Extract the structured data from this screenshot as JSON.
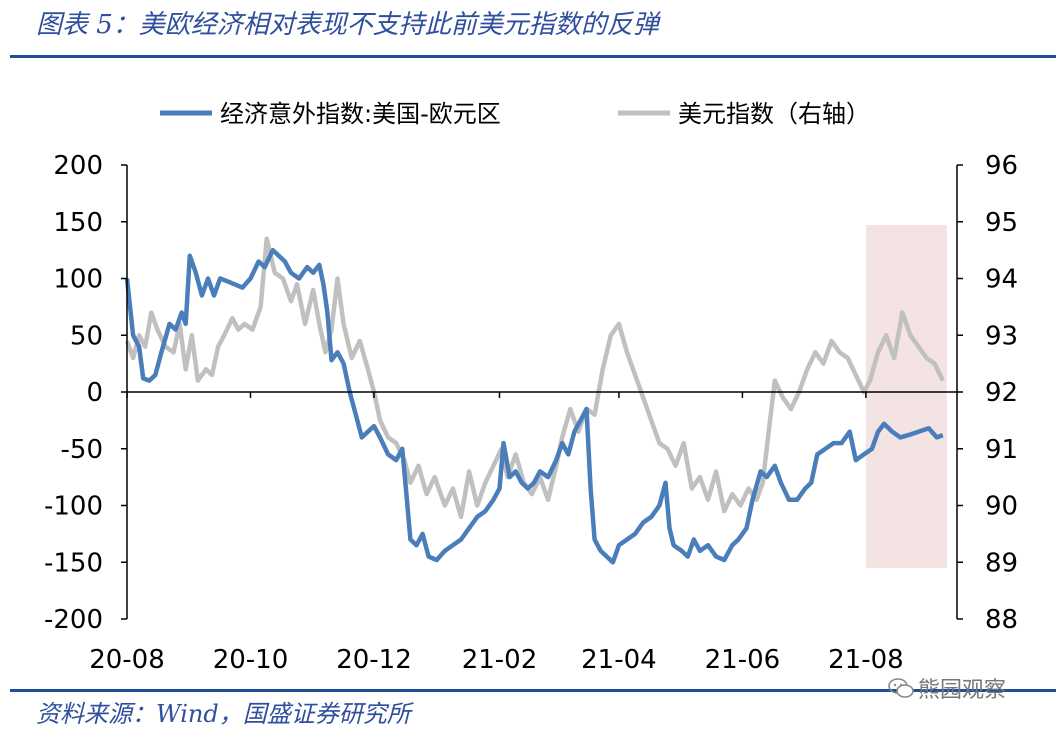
{
  "header": {
    "title": "图表 5：美欧经济相对表现不支持此前美元指数的反弹"
  },
  "footer": {
    "source": "资料来源：Wind，国盛证券研究所",
    "watermark": "熊园观察"
  },
  "colors": {
    "series_primary": "#4a7ebb",
    "series_secondary": "#c0c0c0",
    "highlight": "#f3e3e3",
    "rule": "#1f4f99"
  },
  "chart_data": {
    "type": "line",
    "title": "",
    "xlabel": "",
    "ylabel": "",
    "x_ticks": [
      "20-08",
      "20-10",
      "20-12",
      "21-02",
      "21-04",
      "21-06",
      "21-08"
    ],
    "x_range": [
      "2020-08-01",
      "2021-09-15"
    ],
    "left_axis": {
      "range": [
        -200,
        200
      ],
      "ticks": [
        "200",
        "150",
        "100",
        "50",
        "0",
        "-50",
        "-100",
        "-150",
        "-200"
      ]
    },
    "right_axis": {
      "range": [
        88,
        96
      ],
      "ticks": [
        "96",
        "95",
        "94",
        "93",
        "92",
        "91",
        "90",
        "89",
        "88"
      ]
    },
    "legend_position": "top",
    "highlight_region": {
      "x": [
        "2021-08-01",
        "2021-09-10"
      ]
    },
    "series": [
      {
        "name": "经济意外指数:美国-欧元区",
        "axis": "left",
        "color": "#4a7ebb",
        "points": [
          [
            "2020-08-01",
            100
          ],
          [
            "2020-08-04",
            50
          ],
          [
            "2020-08-07",
            40
          ],
          [
            "2020-08-09",
            12
          ],
          [
            "2020-08-12",
            10
          ],
          [
            "2020-08-15",
            15
          ],
          [
            "2020-08-18",
            35
          ],
          [
            "2020-08-22",
            60
          ],
          [
            "2020-08-25",
            55
          ],
          [
            "2020-08-28",
            70
          ],
          [
            "2020-08-30",
            60
          ],
          [
            "2020-09-01",
            120
          ],
          [
            "2020-09-04",
            105
          ],
          [
            "2020-09-07",
            85
          ],
          [
            "2020-09-10",
            100
          ],
          [
            "2020-09-13",
            85
          ],
          [
            "2020-09-16",
            100
          ],
          [
            "2020-09-19",
            98
          ],
          [
            "2020-09-23",
            95
          ],
          [
            "2020-09-27",
            92
          ],
          [
            "2020-10-01",
            100
          ],
          [
            "2020-10-05",
            115
          ],
          [
            "2020-10-08",
            110
          ],
          [
            "2020-10-12",
            125
          ],
          [
            "2020-10-15",
            120
          ],
          [
            "2020-10-18",
            115
          ],
          [
            "2020-10-21",
            105
          ],
          [
            "2020-10-25",
            100
          ],
          [
            "2020-10-29",
            110
          ],
          [
            "2020-11-01",
            105
          ],
          [
            "2020-11-04",
            112
          ],
          [
            "2020-11-06",
            95
          ],
          [
            "2020-11-08",
            70
          ],
          [
            "2020-11-10",
            28
          ],
          [
            "2020-11-13",
            35
          ],
          [
            "2020-11-16",
            25
          ],
          [
            "2020-11-19",
            0
          ],
          [
            "2020-11-22",
            -20
          ],
          [
            "2020-11-25",
            -40
          ],
          [
            "2020-11-28",
            -35
          ],
          [
            "2020-12-01",
            -30
          ],
          [
            "2020-12-04",
            -40
          ],
          [
            "2020-12-08",
            -55
          ],
          [
            "2020-12-12",
            -60
          ],
          [
            "2020-12-15",
            -50
          ],
          [
            "2020-12-17",
            -90
          ],
          [
            "2020-12-19",
            -130
          ],
          [
            "2020-12-22",
            -135
          ],
          [
            "2020-12-25",
            -125
          ],
          [
            "2020-12-28",
            -145
          ],
          [
            "2021-01-01",
            -148
          ],
          [
            "2021-01-05",
            -140
          ],
          [
            "2021-01-09",
            -135
          ],
          [
            "2021-01-13",
            -130
          ],
          [
            "2021-01-17",
            -120
          ],
          [
            "2021-01-21",
            -110
          ],
          [
            "2021-01-25",
            -105
          ],
          [
            "2021-01-29",
            -95
          ],
          [
            "2021-02-01",
            -85
          ],
          [
            "2021-02-03",
            -45
          ],
          [
            "2021-02-06",
            -75
          ],
          [
            "2021-02-09",
            -70
          ],
          [
            "2021-02-12",
            -80
          ],
          [
            "2021-02-15",
            -85
          ],
          [
            "2021-02-18",
            -80
          ],
          [
            "2021-02-21",
            -70
          ],
          [
            "2021-02-25",
            -75
          ],
          [
            "2021-03-01",
            -60
          ],
          [
            "2021-03-04",
            -45
          ],
          [
            "2021-03-07",
            -55
          ],
          [
            "2021-03-10",
            -35
          ],
          [
            "2021-03-13",
            -25
          ],
          [
            "2021-03-16",
            -15
          ],
          [
            "2021-03-18",
            -85
          ],
          [
            "2021-03-20",
            -130
          ],
          [
            "2021-03-23",
            -140
          ],
          [
            "2021-03-26",
            -145
          ],
          [
            "2021-03-29",
            -150
          ],
          [
            "2021-04-01",
            -135
          ],
          [
            "2021-04-05",
            -130
          ],
          [
            "2021-04-09",
            -125
          ],
          [
            "2021-04-13",
            -115
          ],
          [
            "2021-04-17",
            -110
          ],
          [
            "2021-04-21",
            -100
          ],
          [
            "2021-04-24",
            -80
          ],
          [
            "2021-04-26",
            -120
          ],
          [
            "2021-04-28",
            -135
          ],
          [
            "2021-05-02",
            -140
          ],
          [
            "2021-05-05",
            -145
          ],
          [
            "2021-05-08",
            -130
          ],
          [
            "2021-05-11",
            -140
          ],
          [
            "2021-05-15",
            -135
          ],
          [
            "2021-05-19",
            -145
          ],
          [
            "2021-05-23",
            -148
          ],
          [
            "2021-05-27",
            -135
          ],
          [
            "2021-05-30",
            -130
          ],
          [
            "2021-06-03",
            -120
          ],
          [
            "2021-06-06",
            -95
          ],
          [
            "2021-06-10",
            -70
          ],
          [
            "2021-06-13",
            -75
          ],
          [
            "2021-06-17",
            -65
          ],
          [
            "2021-06-20",
            -80
          ],
          [
            "2021-06-24",
            -95
          ],
          [
            "2021-06-28",
            -95
          ],
          [
            "2021-07-02",
            -85
          ],
          [
            "2021-07-05",
            -80
          ],
          [
            "2021-07-08",
            -55
          ],
          [
            "2021-07-12",
            -50
          ],
          [
            "2021-07-16",
            -45
          ],
          [
            "2021-07-20",
            -45
          ],
          [
            "2021-07-24",
            -35
          ],
          [
            "2021-07-27",
            -60
          ],
          [
            "2021-07-31",
            -55
          ],
          [
            "2021-08-04",
            -50
          ],
          [
            "2021-08-07",
            -35
          ],
          [
            "2021-08-10",
            -28
          ],
          [
            "2021-08-14",
            -35
          ],
          [
            "2021-08-18",
            -40
          ],
          [
            "2021-08-22",
            -38
          ],
          [
            "2021-08-27",
            -35
          ],
          [
            "2021-09-01",
            -32
          ],
          [
            "2021-09-05",
            -40
          ],
          [
            "2021-09-08",
            -38
          ]
        ]
      },
      {
        "name": "美元指数（右轴）",
        "axis": "right",
        "color": "#c0c0c0",
        "points": [
          [
            "2020-08-01",
            92.9
          ],
          [
            "2020-08-04",
            92.6
          ],
          [
            "2020-08-07",
            93.0
          ],
          [
            "2020-08-10",
            92.8
          ],
          [
            "2020-08-13",
            93.4
          ],
          [
            "2020-08-16",
            93.1
          ],
          [
            "2020-08-20",
            92.8
          ],
          [
            "2020-08-24",
            92.7
          ],
          [
            "2020-08-27",
            93.2
          ],
          [
            "2020-08-30",
            92.4
          ],
          [
            "2020-09-02",
            93.0
          ],
          [
            "2020-09-05",
            92.2
          ],
          [
            "2020-09-09",
            92.4
          ],
          [
            "2020-09-12",
            92.3
          ],
          [
            "2020-09-15",
            92.8
          ],
          [
            "2020-09-18",
            93.0
          ],
          [
            "2020-09-22",
            93.3
          ],
          [
            "2020-09-25",
            93.1
          ],
          [
            "2020-09-28",
            93.2
          ],
          [
            "2020-10-02",
            93.1
          ],
          [
            "2020-10-06",
            93.5
          ],
          [
            "2020-10-09",
            94.7
          ],
          [
            "2020-10-13",
            94.1
          ],
          [
            "2020-10-17",
            94.0
          ],
          [
            "2020-10-21",
            93.6
          ],
          [
            "2020-10-24",
            93.9
          ],
          [
            "2020-10-28",
            93.2
          ],
          [
            "2020-11-01",
            93.8
          ],
          [
            "2020-11-04",
            93.2
          ],
          [
            "2020-11-07",
            92.7
          ],
          [
            "2020-11-10",
            93.1
          ],
          [
            "2020-11-13",
            94.0
          ],
          [
            "2020-11-16",
            93.2
          ],
          [
            "2020-11-20",
            92.6
          ],
          [
            "2020-11-24",
            92.9
          ],
          [
            "2020-11-28",
            92.4
          ],
          [
            "2020-12-01",
            92.0
          ],
          [
            "2020-12-04",
            91.5
          ],
          [
            "2020-12-08",
            91.2
          ],
          [
            "2020-12-12",
            91.1
          ],
          [
            "2020-12-16",
            90.8
          ],
          [
            "2020-12-19",
            90.4
          ],
          [
            "2020-12-23",
            90.7
          ],
          [
            "2020-12-27",
            90.2
          ],
          [
            "2020-12-31",
            90.5
          ],
          [
            "2021-01-05",
            90.0
          ],
          [
            "2021-01-09",
            90.3
          ],
          [
            "2021-01-13",
            89.8
          ],
          [
            "2021-01-17",
            90.6
          ],
          [
            "2021-01-21",
            90.0
          ],
          [
            "2021-01-25",
            90.4
          ],
          [
            "2021-01-29",
            90.7
          ],
          [
            "2021-02-02",
            91.0
          ],
          [
            "2021-02-05",
            90.5
          ],
          [
            "2021-02-09",
            90.9
          ],
          [
            "2021-02-13",
            90.4
          ],
          [
            "2021-02-17",
            90.2
          ],
          [
            "2021-02-21",
            90.5
          ],
          [
            "2021-02-25",
            90.1
          ],
          [
            "2021-03-01",
            90.7
          ],
          [
            "2021-03-04",
            91.2
          ],
          [
            "2021-03-08",
            91.7
          ],
          [
            "2021-03-12",
            91.3
          ],
          [
            "2021-03-16",
            91.7
          ],
          [
            "2021-03-20",
            91.6
          ],
          [
            "2021-03-24",
            92.4
          ],
          [
            "2021-03-28",
            93.0
          ],
          [
            "2021-04-01",
            93.2
          ],
          [
            "2021-04-05",
            92.7
          ],
          [
            "2021-04-09",
            92.3
          ],
          [
            "2021-04-13",
            91.9
          ],
          [
            "2021-04-17",
            91.5
          ],
          [
            "2021-04-21",
            91.1
          ],
          [
            "2021-04-25",
            91.0
          ],
          [
            "2021-04-29",
            90.7
          ],
          [
            "2021-05-03",
            91.1
          ],
          [
            "2021-05-07",
            90.3
          ],
          [
            "2021-05-11",
            90.5
          ],
          [
            "2021-05-15",
            90.1
          ],
          [
            "2021-05-19",
            90.6
          ],
          [
            "2021-05-23",
            89.9
          ],
          [
            "2021-05-27",
            90.2
          ],
          [
            "2021-05-31",
            90.0
          ],
          [
            "2021-06-04",
            90.3
          ],
          [
            "2021-06-08",
            90.1
          ],
          [
            "2021-06-11",
            90.4
          ],
          [
            "2021-06-14",
            91.3
          ],
          [
            "2021-06-17",
            92.2
          ],
          [
            "2021-06-21",
            91.9
          ],
          [
            "2021-06-25",
            91.7
          ],
          [
            "2021-06-29",
            92.0
          ],
          [
            "2021-07-03",
            92.4
          ],
          [
            "2021-07-07",
            92.7
          ],
          [
            "2021-07-11",
            92.5
          ],
          [
            "2021-07-15",
            92.9
          ],
          [
            "2021-07-19",
            92.7
          ],
          [
            "2021-07-23",
            92.6
          ],
          [
            "2021-07-27",
            92.3
          ],
          [
            "2021-07-31",
            92.0
          ],
          [
            "2021-08-03",
            92.2
          ],
          [
            "2021-08-07",
            92.7
          ],
          [
            "2021-08-11",
            93.0
          ],
          [
            "2021-08-15",
            92.6
          ],
          [
            "2021-08-19",
            93.4
          ],
          [
            "2021-08-23",
            93.0
          ],
          [
            "2021-08-27",
            92.8
          ],
          [
            "2021-08-31",
            92.6
          ],
          [
            "2021-09-04",
            92.5
          ],
          [
            "2021-09-08",
            92.2
          ]
        ]
      }
    ]
  }
}
